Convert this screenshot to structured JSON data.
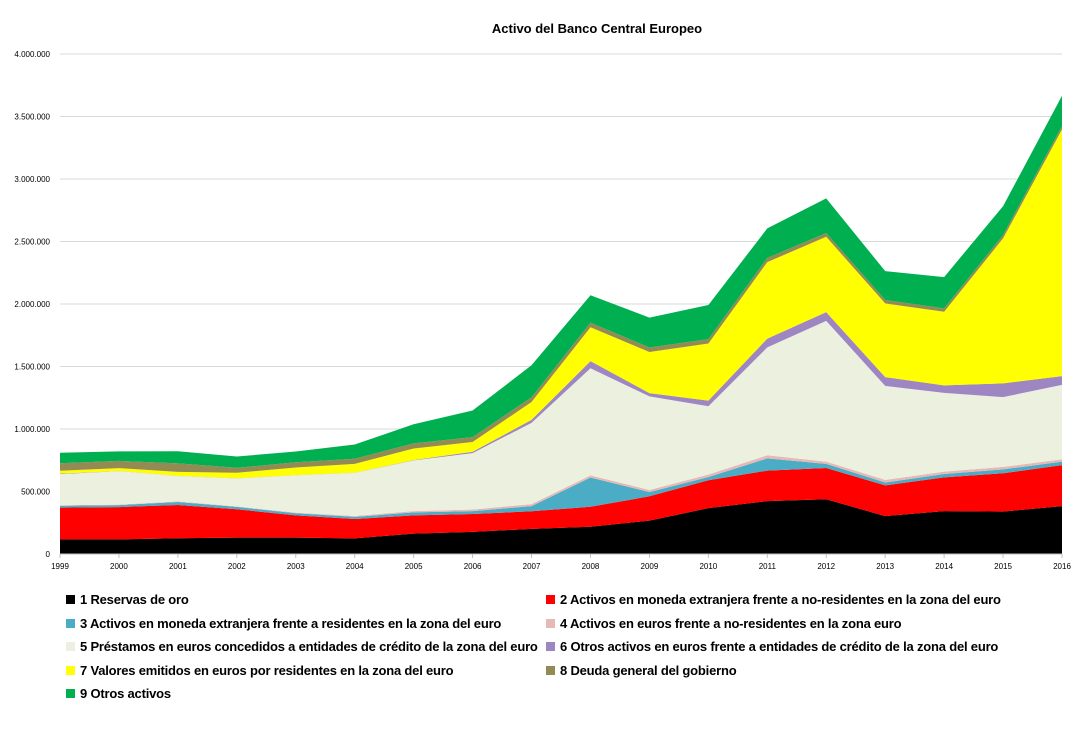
{
  "chart_data": {
    "type": "area",
    "stacked": true,
    "title": "Activo del Banco Central Europeo",
    "xlabel": "",
    "ylabel": "",
    "x": [
      "1999",
      "2000",
      "2001",
      "2002",
      "2003",
      "2004",
      "2005",
      "2006",
      "2007",
      "2008",
      "2009",
      "2010",
      "2011",
      "2012",
      "2013",
      "2014",
      "2015",
      "2016"
    ],
    "ylim": [
      0,
      4000000
    ],
    "yticks": [
      {
        "value": 0,
        "label": "0"
      },
      {
        "value": 500000,
        "label": "500.000"
      },
      {
        "value": 1000000,
        "label": "1.000.000"
      },
      {
        "value": 1500000,
        "label": "1.500.000"
      },
      {
        "value": 2000000,
        "label": "2.000.000"
      },
      {
        "value": 2500000,
        "label": "2.500.000"
      },
      {
        "value": 3000000,
        "label": "3.000.000"
      },
      {
        "value": 3500000,
        "label": "3.500.000"
      },
      {
        "value": 4000000,
        "label": "4.000.000"
      }
    ],
    "grid": true,
    "legend_position": "bottom",
    "series": [
      {
        "name": "1 Reservas de oro",
        "color": "#000000",
        "values": [
          117000,
          117000,
          126000,
          131000,
          131000,
          125000,
          163000,
          177000,
          201000,
          218000,
          267000,
          367000,
          423000,
          438000,
          303000,
          343000,
          339000,
          383000
        ]
      },
      {
        "name": "2 Activos en moneda extranjera frente a no-residentes en la zona del euro",
        "color": "#ff0000",
        "values": [
          254000,
          258000,
          266000,
          227000,
          178000,
          155000,
          146000,
          143000,
          141000,
          160000,
          195000,
          223000,
          244000,
          250000,
          246000,
          270000,
          307000,
          328000
        ]
      },
      {
        "name": "3 Activos en moneda extranjera frente a residentes en la zona del euro",
        "color": "#4bacc6",
        "values": [
          15000,
          16000,
          24000,
          19000,
          17000,
          17000,
          24000,
          23000,
          41000,
          234000,
          33000,
          26000,
          98000,
          33000,
          23000,
          27000,
          31000,
          28000
        ]
      },
      {
        "name": "4 Activos en euros frente a no-residentes en la zona euro",
        "color": "#e6b9b8",
        "values": [
          4000,
          4000,
          5000,
          4000,
          5000,
          7000,
          10000,
          13000,
          16000,
          17000,
          17000,
          20000,
          25000,
          18000,
          21000,
          19000,
          20000,
          19000
        ]
      },
      {
        "name": "5 Préstamos en euros concedidos a entidades de crédito de la zona del euro",
        "color": "#ebf1de",
        "values": [
          249000,
          268000,
          203000,
          224000,
          299000,
          345000,
          406000,
          451000,
          650000,
          857000,
          749000,
          546000,
          863000,
          1126000,
          752000,
          630000,
          558000,
          595000
        ]
      },
      {
        "name": "6 Otros activos en euros frente a entidades de crédito de la zona del euro",
        "color": "#9e86c2",
        "values": [
          4000,
          1000,
          1000,
          1000,
          1000,
          1000,
          3000,
          11000,
          24000,
          57000,
          26000,
          45000,
          70000,
          70000,
          70000,
          60000,
          110000,
          70000
        ]
      },
      {
        "name": "7 Valores emitidos en euros por residentes en la zona del euro",
        "color": "#ffff00",
        "values": [
          23000,
          23000,
          32000,
          44000,
          61000,
          71000,
          92000,
          78000,
          143000,
          271000,
          329000,
          457000,
          612000,
          603000,
          590000,
          589000,
          1161000,
          1974000
        ]
      },
      {
        "name": "8 Deuda general del gobierno",
        "color": "#948a54",
        "values": [
          60000,
          58000,
          68000,
          40000,
          42000,
          41000,
          41000,
          39000,
          38000,
          37000,
          36000,
          35000,
          34000,
          30000,
          28000,
          27000,
          26000,
          26000
        ]
      },
      {
        "name": "9 Otros activos",
        "color": "#00b050",
        "values": [
          84000,
          76000,
          97000,
          90000,
          86000,
          114000,
          153000,
          213000,
          256000,
          219000,
          239000,
          273000,
          236000,
          277000,
          230000,
          250000,
          231000,
          243000
        ]
      }
    ]
  }
}
